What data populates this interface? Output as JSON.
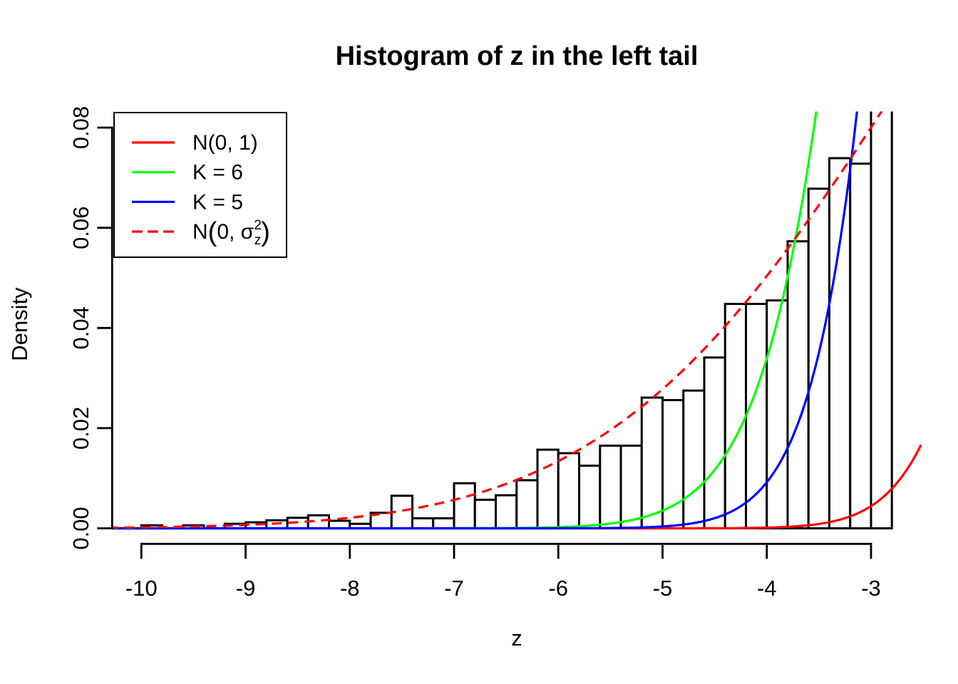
{
  "title": "Histogram of z in the left tail",
  "axes": {
    "x": {
      "label": "z",
      "tick_values": [
        -10,
        -9,
        -8,
        -7,
        -6,
        -5,
        -4,
        -3
      ],
      "tick_labels": [
        "-10",
        "-9",
        "-8",
        "-7",
        "-6",
        "-5",
        "-4",
        "-3"
      ],
      "range_shown": [
        -10.29,
        -2.51
      ]
    },
    "y": {
      "label": "Density",
      "tick_values": [
        0,
        0.02,
        0.04,
        0.06,
        0.08
      ],
      "tick_labels": [
        "0.00",
        "0.02",
        "0.04",
        "0.06",
        "0.08"
      ],
      "range_shown": [
        -0.0032,
        0.0832
      ]
    }
  },
  "legend": {
    "items": [
      {
        "label": "N(0, 1)",
        "color": "#ff0000",
        "line_style": "solid"
      },
      {
        "label": "K = 6",
        "color": "#00ff00",
        "line_style": "solid"
      },
      {
        "label": "K = 5",
        "color": "#0000ff",
        "line_style": "solid"
      },
      {
        "label": "N(0, σz²)",
        "color": "#ff0000",
        "line_style": "dashed",
        "rich_parts": {
          "pre": "N",
          "open": "(",
          "mid": "0, σ",
          "sup": "2",
          "sub": "z",
          "close": ")"
        }
      }
    ]
  },
  "chart_data": {
    "type": "histogram_with_density_curves",
    "title": "Histogram of z in the left tail",
    "xlabel": "z",
    "ylabel": "Density",
    "xlim": [
      -10.0,
      -2.8
    ],
    "ylim": [
      0,
      0.08
    ],
    "histogram": {
      "bin_width": 0.2,
      "note": "density histogram of z; bar starting at z=-3.0 extends above the visible y-range and is clipped at the plot top",
      "bins": [
        {
          "z_left": -10.0,
          "density": 0.0006
        },
        {
          "z_left": -9.8,
          "density": 0.0
        },
        {
          "z_left": -9.6,
          "density": 0.0006
        },
        {
          "z_left": -9.4,
          "density": 0.0
        },
        {
          "z_left": -9.2,
          "density": 0.0009
        },
        {
          "z_left": -9.0,
          "density": 0.0012
        },
        {
          "z_left": -8.8,
          "density": 0.0016
        },
        {
          "z_left": -8.6,
          "density": 0.0021
        },
        {
          "z_left": -8.4,
          "density": 0.0026
        },
        {
          "z_left": -8.2,
          "density": 0.0015
        },
        {
          "z_left": -8.0,
          "density": 0.0009
        },
        {
          "z_left": -7.8,
          "density": 0.0031
        },
        {
          "z_left": -7.6,
          "density": 0.0065
        },
        {
          "z_left": -7.4,
          "density": 0.002
        },
        {
          "z_left": -7.2,
          "density": 0.002
        },
        {
          "z_left": -7.0,
          "density": 0.009
        },
        {
          "z_left": -6.8,
          "density": 0.0057
        },
        {
          "z_left": -6.6,
          "density": 0.0066
        },
        {
          "z_left": -6.4,
          "density": 0.0096
        },
        {
          "z_left": -6.2,
          "density": 0.0157
        },
        {
          "z_left": -6.0,
          "density": 0.015
        },
        {
          "z_left": -5.8,
          "density": 0.0125
        },
        {
          "z_left": -5.6,
          "density": 0.0165
        },
        {
          "z_left": -5.4,
          "density": 0.0165
        },
        {
          "z_left": -5.2,
          "density": 0.0261
        },
        {
          "z_left": -5.0,
          "density": 0.0256
        },
        {
          "z_left": -4.8,
          "density": 0.0275
        },
        {
          "z_left": -4.6,
          "density": 0.0341
        },
        {
          "z_left": -4.4,
          "density": 0.0448
        },
        {
          "z_left": -4.2,
          "density": 0.0448
        },
        {
          "z_left": -4.0,
          "density": 0.0455
        },
        {
          "z_left": -3.8,
          "density": 0.0573
        },
        {
          "z_left": -3.6,
          "density": 0.0678
        },
        {
          "z_left": -3.4,
          "density": 0.0739
        },
        {
          "z_left": -3.2,
          "density": 0.0728
        },
        {
          "z_left": -3.0,
          "density": 0.095,
          "clipped": true
        }
      ]
    },
    "curves": [
      {
        "name": "N(0, 1)",
        "color": "#ff0000",
        "style": "solid",
        "gaussian": {
          "A": 0.39894,
          "s2": 1.0
        }
      },
      {
        "name": "K = 6",
        "color": "#00ff00",
        "style": "solid",
        "gaussian": {
          "A": 1.889,
          "s2": 1.99
        }
      },
      {
        "name": "K = 5",
        "color": "#0000ff",
        "style": "solid",
        "gaussian": {
          "A": 2.766,
          "s2": 1.402
        }
      },
      {
        "name": "N(0, σz²)",
        "color": "#ff0000",
        "style": "dashed",
        "gaussian": {
          "A": 0.14507,
          "s2": 7.5625
        }
      }
    ],
    "legend_position": "topleft",
    "grid": false
  },
  "colors": {
    "background": "#ffffff",
    "foreground": "#000000",
    "red": "#ff0000",
    "green": "#00ff00",
    "blue": "#0000ff"
  }
}
